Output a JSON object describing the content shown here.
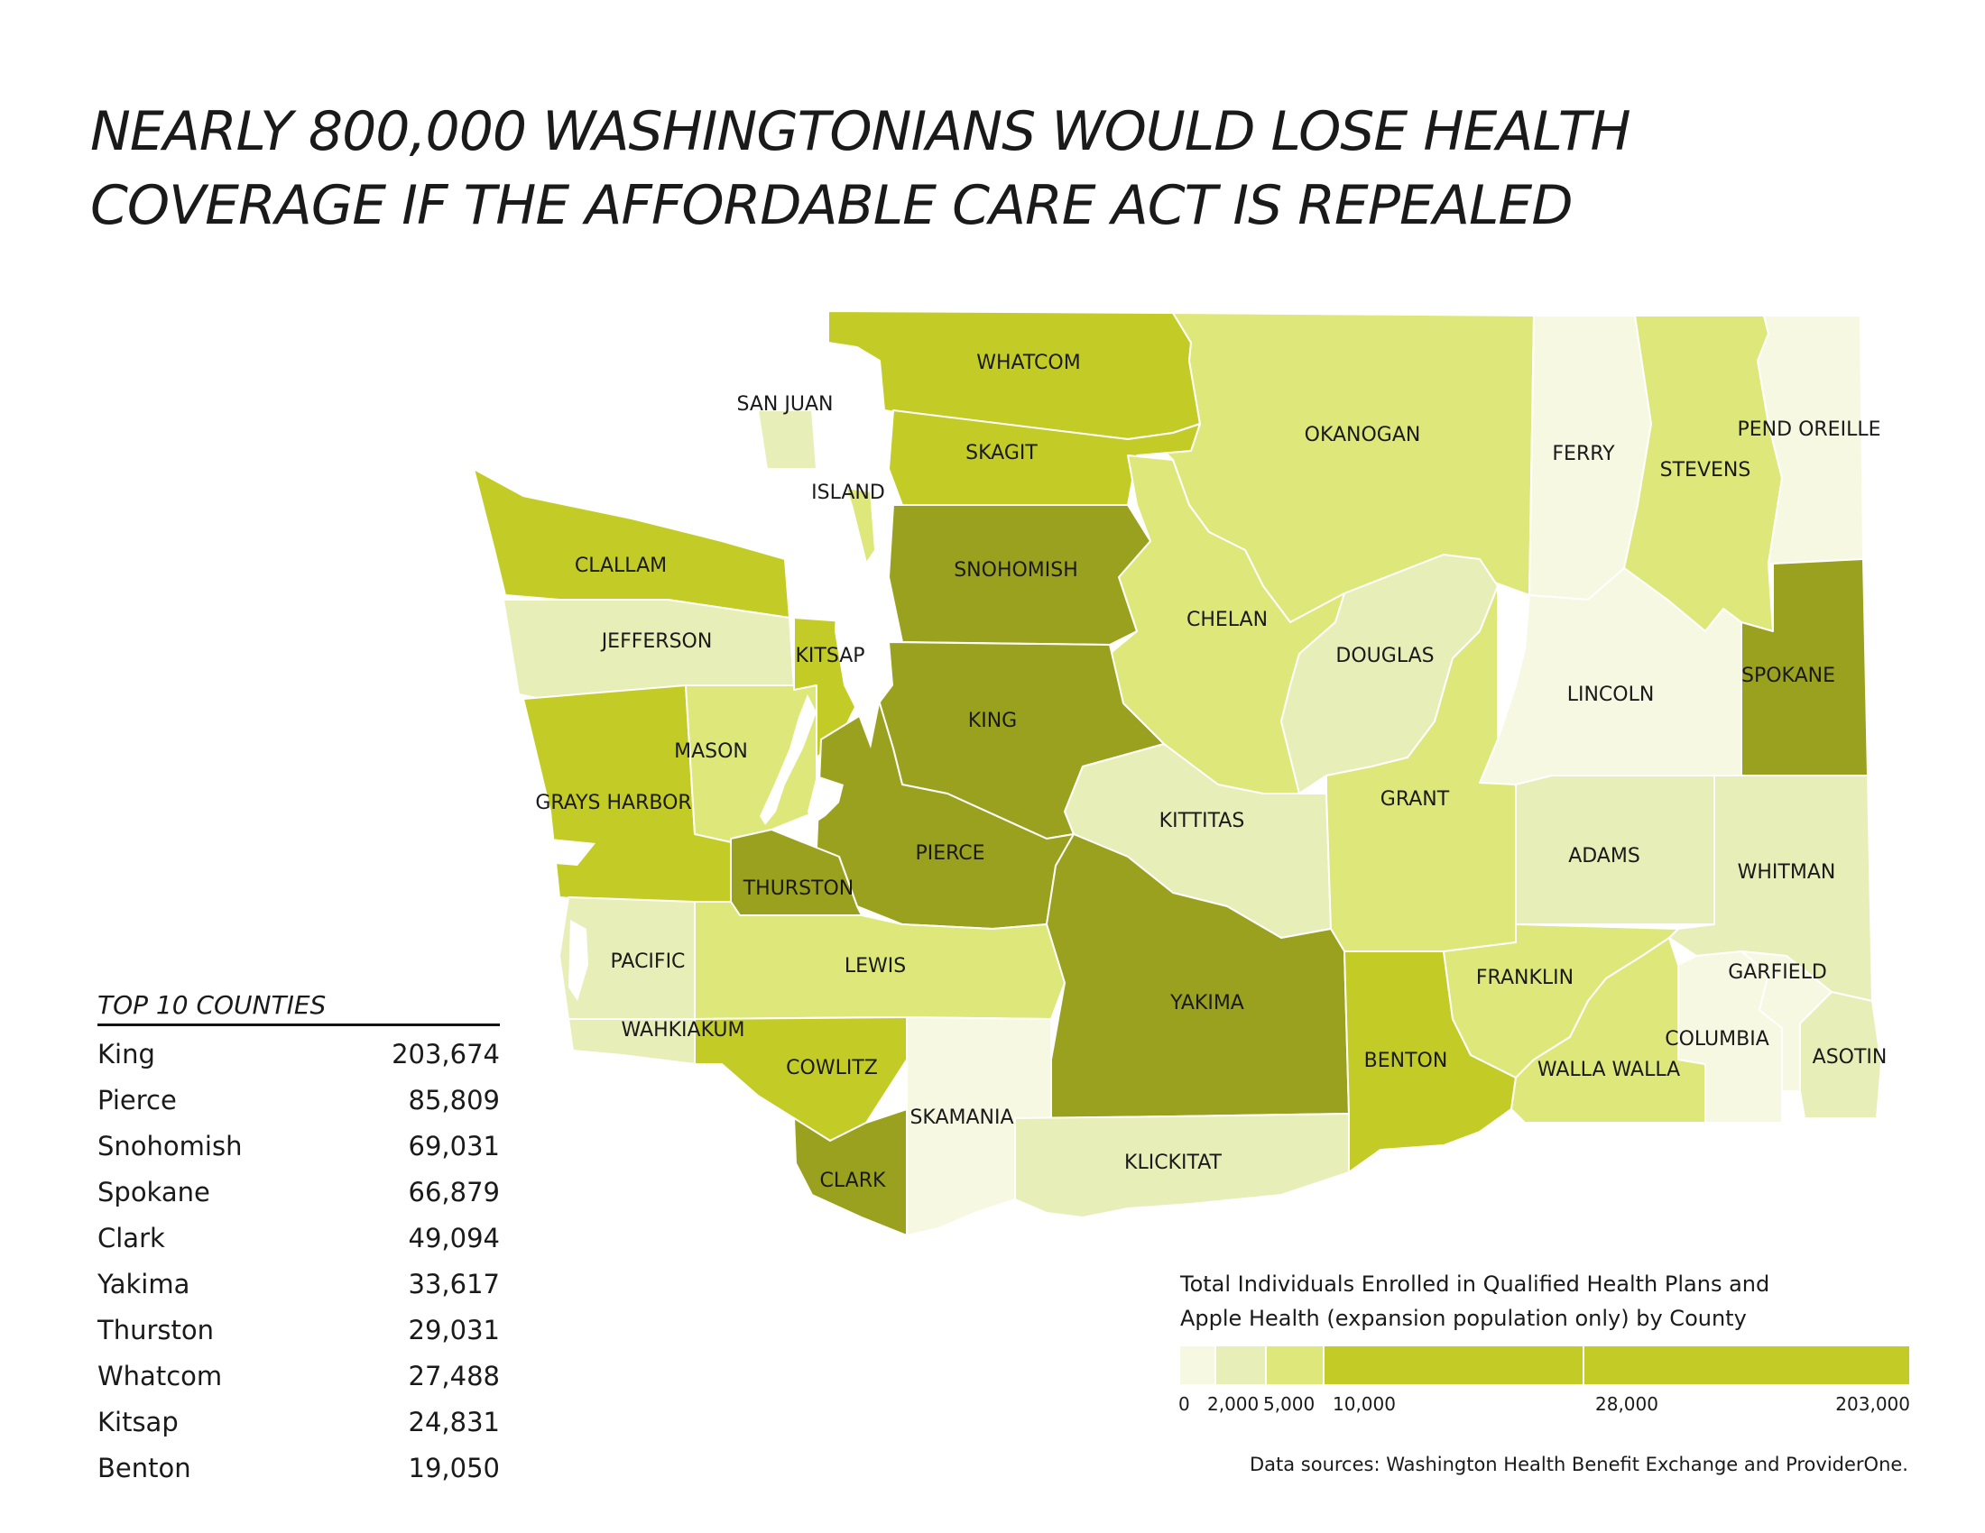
{
  "title": {
    "line1": "NEARLY 800,000 WASHINGTONIANS WOULD LOSE HEALTH",
    "line2": "COVERAGE IF THE AFFORDABLE CARE ACT IS REPEALED"
  },
  "map": {
    "type": "choropleth",
    "region": "Washington State counties",
    "colors": {
      "c1": "#f6f8e2",
      "c2": "#e8eeb8",
      "c3": "#dde77a",
      "c4": "#c3cc26",
      "c5": "#9aa11e",
      "border": "#ffffff",
      "water": "#ffffff"
    },
    "counties": [
      {
        "name": "WHATCOM",
        "class": 4
      },
      {
        "name": "SAN JUAN",
        "class": 2
      },
      {
        "name": "SKAGIT",
        "class": 4
      },
      {
        "name": "ISLAND",
        "class": 3
      },
      {
        "name": "OKANOGAN",
        "class": 3
      },
      {
        "name": "FERRY",
        "class": 1
      },
      {
        "name": "STEVENS",
        "class": 3
      },
      {
        "name": "PEND OREILLE",
        "class": 1
      },
      {
        "name": "CLALLAM",
        "class": 4
      },
      {
        "name": "JEFFERSON",
        "class": 2
      },
      {
        "name": "SNOHOMISH",
        "class": 5
      },
      {
        "name": "KITSAP",
        "class": 4
      },
      {
        "name": "CHELAN",
        "class": 3
      },
      {
        "name": "DOUGLAS",
        "class": 2
      },
      {
        "name": "LINCOLN",
        "class": 1
      },
      {
        "name": "SPOKANE",
        "class": 5
      },
      {
        "name": "MASON",
        "class": 3
      },
      {
        "name": "KING",
        "class": 5
      },
      {
        "name": "GRAYS HARBOR",
        "class": 4
      },
      {
        "name": "KITTITAS",
        "class": 2
      },
      {
        "name": "GRANT",
        "class": 3
      },
      {
        "name": "ADAMS",
        "class": 2
      },
      {
        "name": "WHITMAN",
        "class": 2
      },
      {
        "name": "THURSTON",
        "class": 5
      },
      {
        "name": "PIERCE",
        "class": 5
      },
      {
        "name": "PACIFIC",
        "class": 2
      },
      {
        "name": "LEWIS",
        "class": 3
      },
      {
        "name": "YAKIMA",
        "class": 5
      },
      {
        "name": "FRANKLIN",
        "class": 3
      },
      {
        "name": "GARFIELD",
        "class": 1
      },
      {
        "name": "WAHKIAKUM",
        "class": 2
      },
      {
        "name": "COWLITZ",
        "class": 4
      },
      {
        "name": "BENTON",
        "class": 4
      },
      {
        "name": "COLUMBIA",
        "class": 1
      },
      {
        "name": "WALLA WALLA",
        "class": 3
      },
      {
        "name": "ASOTIN",
        "class": 2
      },
      {
        "name": "SKAMANIA",
        "class": 1
      },
      {
        "name": "KLICKITAT",
        "class": 2
      },
      {
        "name": "CLARK",
        "class": 5
      }
    ]
  },
  "top10": {
    "heading": "TOP 10 COUNTIES",
    "rows": [
      {
        "county": "King",
        "value": "203,674"
      },
      {
        "county": "Pierce",
        "value": "85,809"
      },
      {
        "county": "Snohomish",
        "value": "69,031"
      },
      {
        "county": "Spokane",
        "value": "66,879"
      },
      {
        "county": "Clark",
        "value": "49,094"
      },
      {
        "county": "Yakima",
        "value": "33,617"
      },
      {
        "county": "Thurston",
        "value": "29,031"
      },
      {
        "county": "Whatcom",
        "value": "27,488"
      },
      {
        "county": "Kitsap",
        "value": "24,831"
      },
      {
        "county": "Benton",
        "value": "19,050"
      }
    ]
  },
  "legend": {
    "title_line1": "Total Individuals Enrolled in Qualified Health Plans and",
    "title_line2": "Apple Health (expansion population only) by County",
    "breaks": [
      0,
      2000,
      5000,
      10000,
      28000,
      203000
    ],
    "labels": [
      "0",
      "2,000",
      "5,000",
      "10,000",
      "28,000",
      "203,000"
    ],
    "classes": [
      "c1",
      "c2",
      "c3",
      "c4",
      "c4",
      "c5"
    ]
  },
  "sources": "Data sources: Washington Health Benefit Exchange and ProviderOne."
}
